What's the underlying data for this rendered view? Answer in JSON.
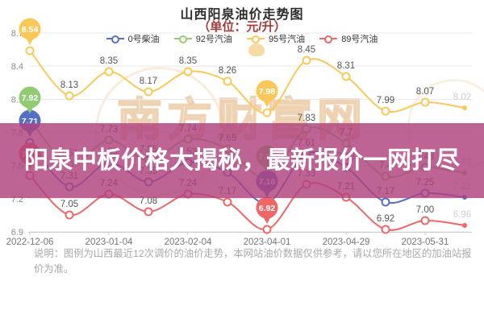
{
  "header": {
    "title": "山西阳泉油价走势图",
    "subtitle": "（单位：元/升）"
  },
  "legend": [
    {
      "label": "0号柴油",
      "color": "#5470c6"
    },
    {
      "label": "92号汽油",
      "color": "#91cc75"
    },
    {
      "label": "95号汽油",
      "color": "#fac858"
    },
    {
      "label": "89号汽油",
      "color": "#ee6666"
    }
  ],
  "chart_data": {
    "type": "line",
    "x_dates": [
      "2022-12-06",
      "2023-01-04",
      "2023-02-04",
      "2023-04-01",
      "2023-04-29",
      "2023-05-31"
    ],
    "x_label_indices": [
      0,
      2,
      4,
      6,
      8,
      10
    ],
    "n_points": 12,
    "ylim": [
      6.9,
      8.7
    ],
    "yticks": [
      "6.9",
      "7.2",
      "7.5",
      "7.8",
      "8.1",
      "8.4",
      "8.7"
    ],
    "grid": true,
    "legend_position": "top",
    "balloon_indices": [
      0,
      6
    ],
    "series": [
      {
        "name": "0号柴油",
        "color": "#5470c6",
        "values": [
          7.71,
          7.31,
          7.53,
          7.35,
          7.53,
          7.44,
          7.16,
          7.61,
          7.48,
          7.17,
          7.25,
          7.21
        ],
        "labels": [
          "7.71",
          "7.31",
          "7.53",
          "7.35",
          "7.53",
          "7.44",
          "7.16",
          "7.61",
          "7.48",
          "7.17",
          "7.25",
          "7.21"
        ]
      },
      {
        "name": "92号汽油",
        "color": "#91cc75",
        "values": [
          7.92,
          7.51,
          7.73,
          7.55,
          7.74,
          7.65,
          7.39,
          7.83,
          7.7,
          7.4,
          7.48,
          7.43
        ],
        "labels": [
          "7.92",
          "7.51",
          "7.73",
          "7.55",
          "7.74",
          "7.65",
          "7.39",
          "7.83",
          "7.7",
          "7.4",
          "7.48",
          "7.43"
        ]
      },
      {
        "name": "95号汽油",
        "color": "#fac858",
        "values": [
          8.54,
          8.13,
          8.35,
          8.17,
          8.35,
          8.26,
          7.98,
          8.45,
          8.31,
          7.99,
          8.07,
          8.02
        ],
        "labels": [
          "8.54",
          "8.13",
          "8.35",
          "8.17",
          "8.35",
          "8.26",
          "7.98",
          "8.45",
          "8.31",
          "7.99",
          "8.07",
          "8.02"
        ]
      },
      {
        "name": "89号汽油",
        "color": "#ee6666",
        "values": [
          7.41,
          7.05,
          7.24,
          7.08,
          7.24,
          7.17,
          6.92,
          7.33,
          7.21,
          6.92,
          7.0,
          6.96
        ],
        "labels": [
          "7.41",
          "7.05",
          "7.24",
          "7.08",
          "7.24",
          "7.17",
          "6.92",
          "7.33",
          "7.21",
          "6.92",
          "7.00",
          "6.96"
        ]
      }
    ]
  },
  "banner": {
    "text": "阳泉中板价格大揭秘，最新报价一网打尽",
    "bg": "#b0427e"
  },
  "watermark": {
    "text": "南方财富网"
  },
  "note": {
    "text": "说明：图例为山西最近12次调价的油价走势，本网站油价数据仅供参考，请以您所在地区的加油站报价为准。"
  }
}
